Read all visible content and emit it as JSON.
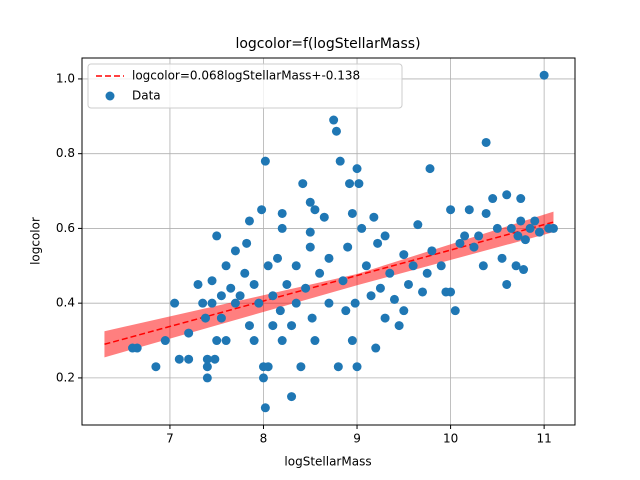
{
  "chart_data": {
    "type": "scatter",
    "title": "logcolor=f(logStellarMass)",
    "x_label": "logStellarMass",
    "y_label": "logcolor",
    "xlim": [
      6.06,
      11.33
    ],
    "ylim": [
      0.074,
      1.056
    ],
    "xticks": [
      7,
      8,
      9,
      10,
      11
    ],
    "yticks": [
      0.2,
      0.4,
      0.6,
      0.8,
      {
        "value": 1.0,
        "label": "1.0"
      }
    ],
    "grid": true,
    "legend": "upper left",
    "band": {
      "color": "#ff0000",
      "x": [
        6.3,
        9.0,
        11.1
      ],
      "upper": [
        0.325,
        0.478,
        0.645
      ],
      "lower": [
        0.255,
        0.448,
        0.59
      ]
    },
    "series": [
      {
        "name": "logcolor=0.068logStellarMass+-0.138",
        "type": "line",
        "color": "#ff0000",
        "dashed": true,
        "x": [
          6.3,
          11.1
        ],
        "values": [
          0.29,
          0.617
        ]
      },
      {
        "name": "Data",
        "type": "scatter",
        "color": "#1f77b4",
        "x": [
          6.6,
          6.65,
          6.85,
          6.95,
          7.05,
          7.1,
          7.2,
          7.2,
          7.3,
          7.35,
          7.38,
          7.4,
          7.4,
          7.4,
          7.45,
          7.45,
          7.48,
          7.5,
          7.5,
          7.55,
          7.55,
          7.6,
          7.6,
          7.65,
          7.7,
          7.7,
          7.75,
          7.8,
          7.82,
          7.85,
          7.85,
          7.9,
          7.9,
          7.95,
          7.98,
          8.0,
          8.0,
          8.02,
          8.02,
          8.05,
          8.05,
          8.1,
          8.1,
          8.15,
          8.18,
          8.2,
          8.2,
          8.2,
          8.25,
          8.3,
          8.3,
          8.35,
          8.35,
          8.4,
          8.42,
          8.45,
          8.5,
          8.5,
          8.5,
          8.52,
          8.55,
          8.55,
          8.6,
          8.65,
          8.7,
          8.7,
          8.75,
          8.78,
          8.8,
          8.82,
          8.85,
          8.88,
          8.9,
          8.92,
          8.95,
          8.95,
          8.98,
          9.0,
          9.0,
          9.02,
          9.05,
          9.1,
          9.15,
          9.18,
          9.2,
          9.22,
          9.25,
          9.3,
          9.3,
          9.35,
          9.4,
          9.45,
          9.5,
          9.5,
          9.55,
          9.6,
          9.65,
          9.7,
          9.75,
          9.78,
          9.8,
          9.9,
          9.95,
          10.0,
          10.0,
          10.05,
          10.1,
          10.15,
          10.2,
          10.25,
          10.3,
          10.35,
          10.38,
          10.38,
          10.45,
          10.5,
          10.55,
          10.6,
          10.6,
          10.65,
          10.7,
          10.72,
          10.75,
          10.75,
          10.78,
          10.8,
          10.85,
          10.9,
          10.95,
          11.0,
          11.05,
          11.1
        ],
        "values": [
          0.28,
          0.28,
          0.23,
          0.3,
          0.4,
          0.25,
          0.25,
          0.32,
          0.45,
          0.4,
          0.36,
          0.2,
          0.23,
          0.25,
          0.4,
          0.46,
          0.25,
          0.3,
          0.58,
          0.42,
          0.36,
          0.3,
          0.5,
          0.44,
          0.4,
          0.54,
          0.42,
          0.48,
          0.56,
          0.62,
          0.34,
          0.3,
          0.45,
          0.4,
          0.65,
          0.23,
          0.2,
          0.78,
          0.12,
          0.5,
          0.23,
          0.42,
          0.34,
          0.52,
          0.38,
          0.6,
          0.64,
          0.3,
          0.45,
          0.15,
          0.34,
          0.4,
          0.5,
          0.23,
          0.72,
          0.44,
          0.55,
          0.67,
          0.59,
          0.36,
          0.65,
          0.3,
          0.48,
          0.63,
          0.4,
          0.52,
          0.89,
          0.86,
          0.23,
          0.78,
          0.46,
          0.38,
          0.55,
          0.72,
          0.64,
          0.3,
          0.4,
          0.23,
          0.76,
          0.72,
          0.6,
          0.5,
          0.42,
          0.63,
          0.28,
          0.56,
          0.44,
          0.58,
          0.36,
          0.48,
          0.41,
          0.34,
          0.53,
          0.38,
          0.45,
          0.5,
          0.61,
          0.43,
          0.48,
          0.76,
          0.54,
          0.5,
          0.43,
          0.65,
          0.43,
          0.38,
          0.56,
          0.58,
          0.65,
          0.55,
          0.58,
          0.5,
          0.64,
          0.83,
          0.68,
          0.6,
          0.52,
          0.45,
          0.69,
          0.6,
          0.5,
          0.58,
          0.62,
          0.68,
          0.49,
          0.57,
          0.6,
          0.62,
          0.59,
          1.01,
          0.6,
          0.6
        ]
      }
    ]
  }
}
